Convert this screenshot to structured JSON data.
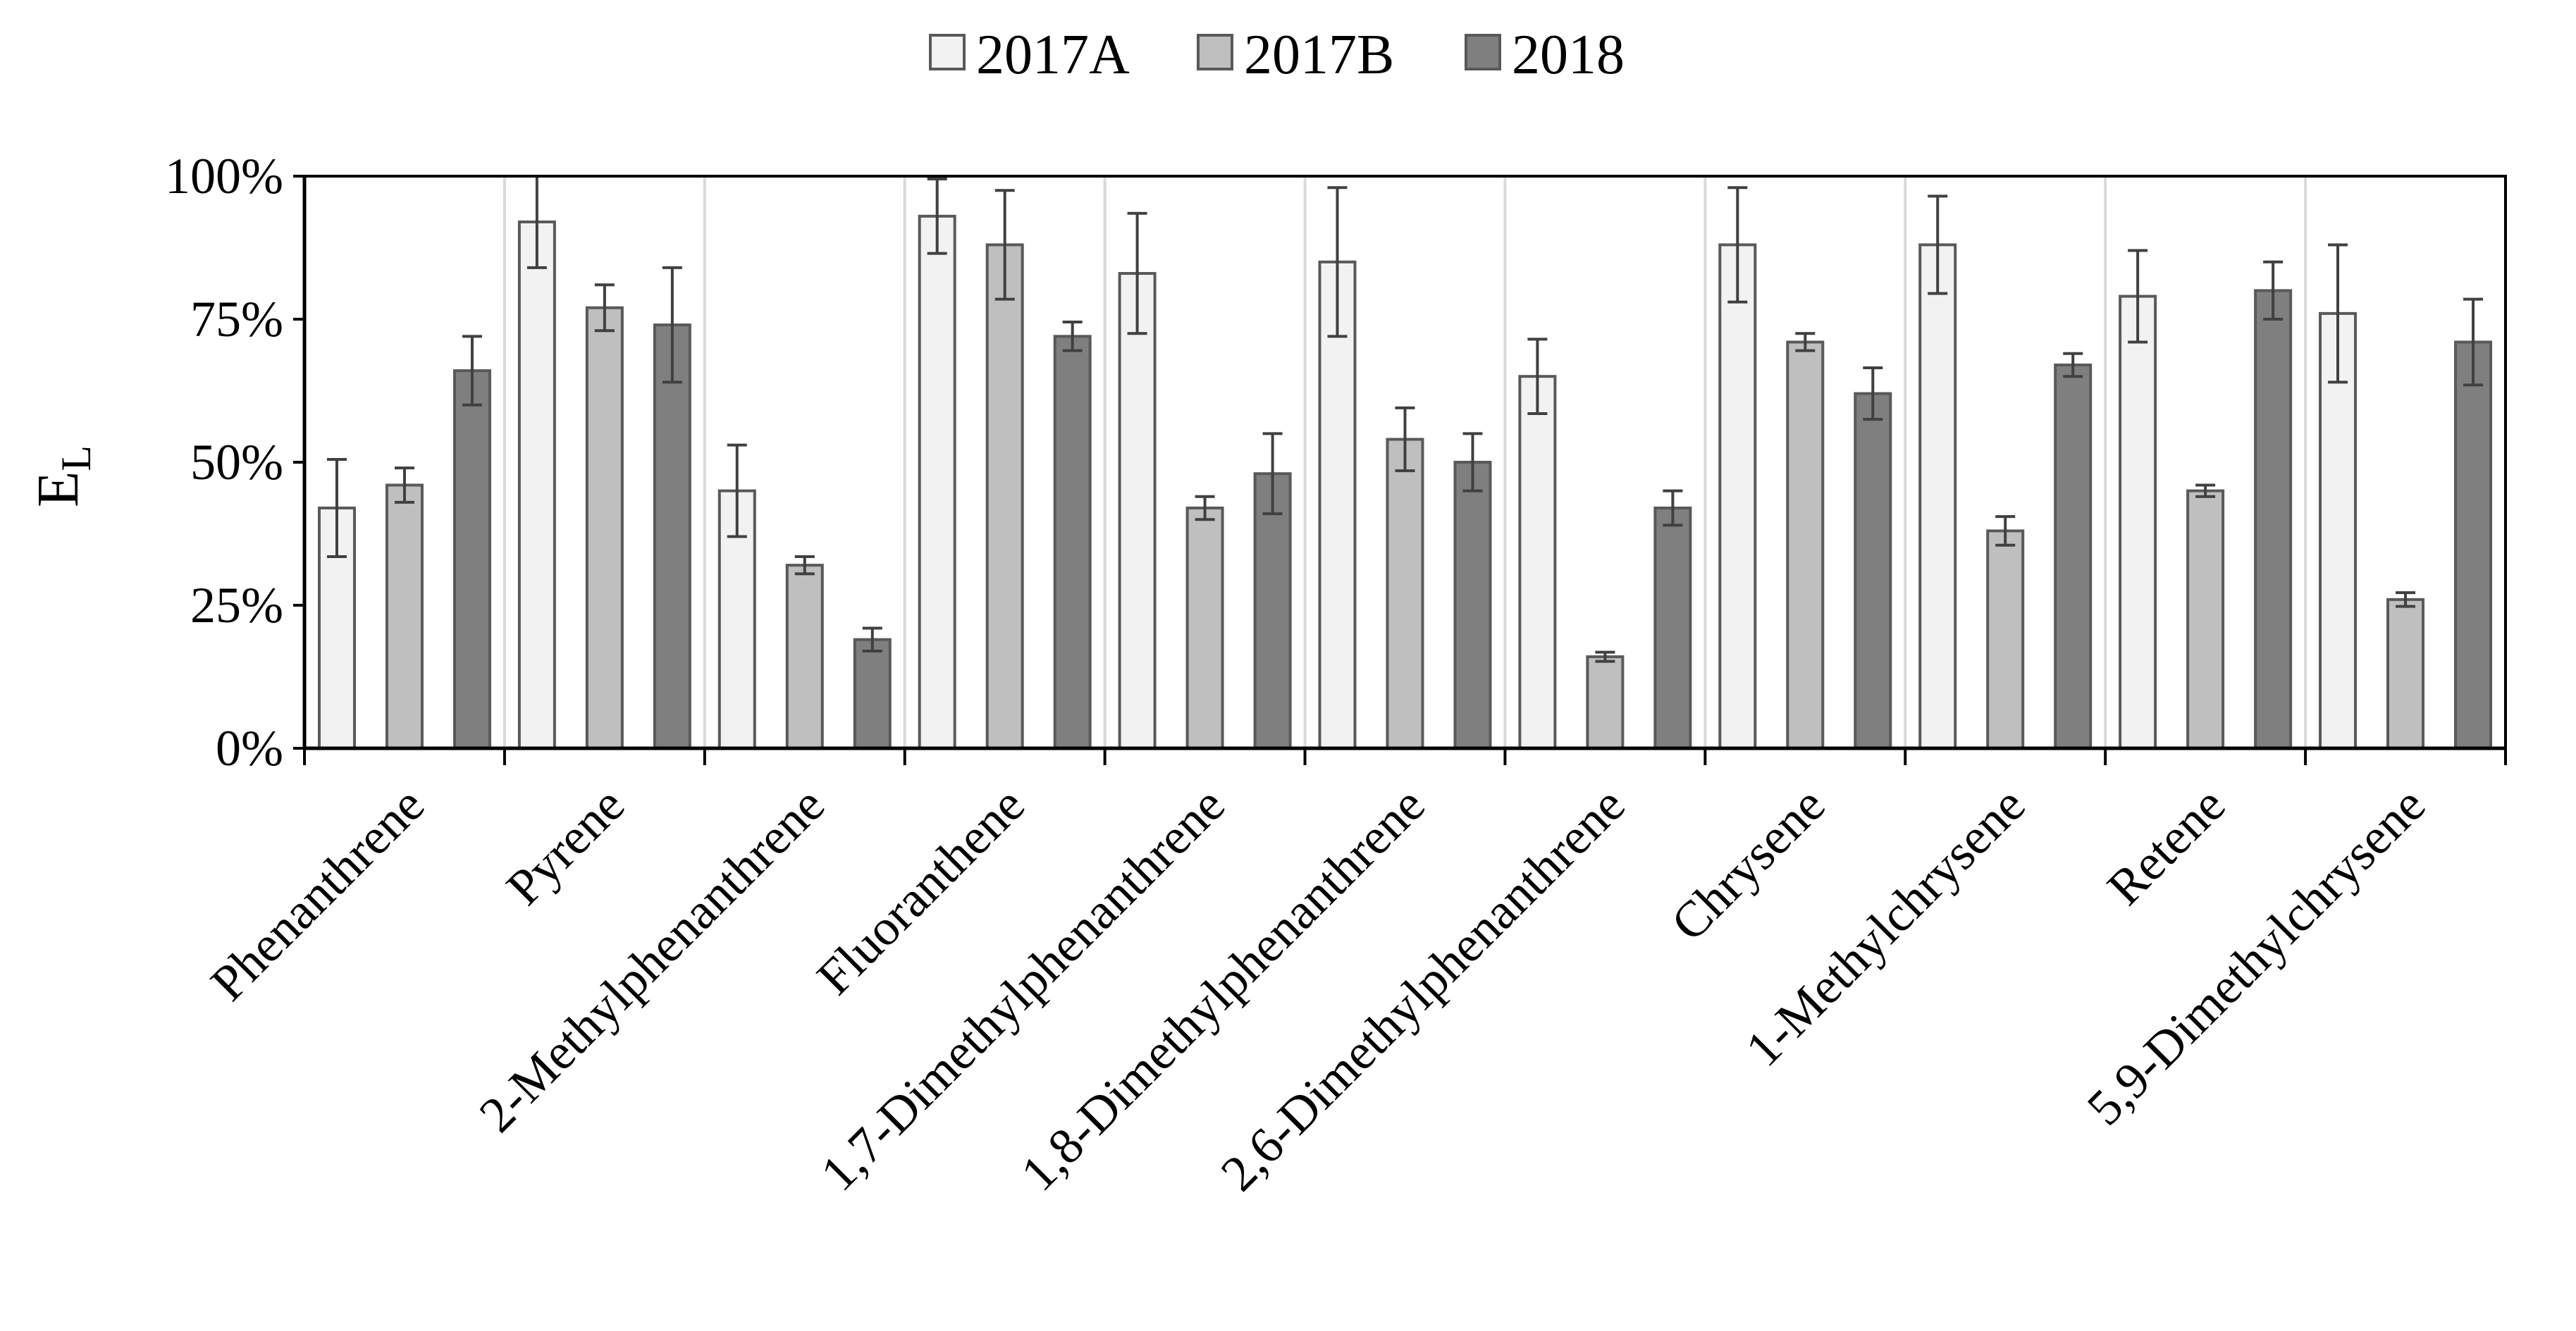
{
  "chart_data": {
    "type": "bar",
    "title": "",
    "xlabel": "",
    "ylabel": "E",
    "ylabel_subscript": "L",
    "ylim": [
      0,
      100
    ],
    "yticks": [
      0,
      25,
      50,
      75,
      100
    ],
    "ytick_labels": [
      "0%",
      "25%",
      "50%",
      "75%",
      "100%"
    ],
    "legend_position": "top-center",
    "categories": [
      "Phenanthrene",
      "Pyrene",
      "2-Methylphenanthrene",
      "Fluoranthene",
      "1,7-Dimethylphenanthrene",
      "1,8-Dimethylphenanthrene",
      "2,6-Dimethylphenanthrene",
      "Chrysene",
      "1-Methylchrysene",
      "Retene",
      "5,9-Dimethylchrysene"
    ],
    "series": [
      {
        "name": "2017A",
        "color": "#f2f2f2",
        "values": [
          42,
          92,
          45,
          93,
          83,
          85,
          65,
          88,
          88,
          79,
          76
        ],
        "errors": [
          8.5,
          8,
          8,
          6.5,
          10.5,
          13,
          6.5,
          10,
          8.5,
          8,
          12
        ]
      },
      {
        "name": "2017B",
        "color": "#bfbfbf",
        "values": [
          46,
          77,
          32,
          88,
          42,
          54,
          16,
          71,
          38,
          45,
          26
        ],
        "errors": [
          3,
          4,
          1.5,
          9.5,
          2,
          5.5,
          0.8,
          1.5,
          2.5,
          1,
          1.2
        ]
      },
      {
        "name": "2018",
        "color": "#7f7f7f",
        "values": [
          66,
          74,
          19,
          72,
          48,
          50,
          42,
          62,
          67,
          80,
          71
        ],
        "errors": [
          6,
          10,
          2,
          2.5,
          7,
          5,
          3,
          4.5,
          2,
          5,
          7.5
        ]
      }
    ]
  }
}
